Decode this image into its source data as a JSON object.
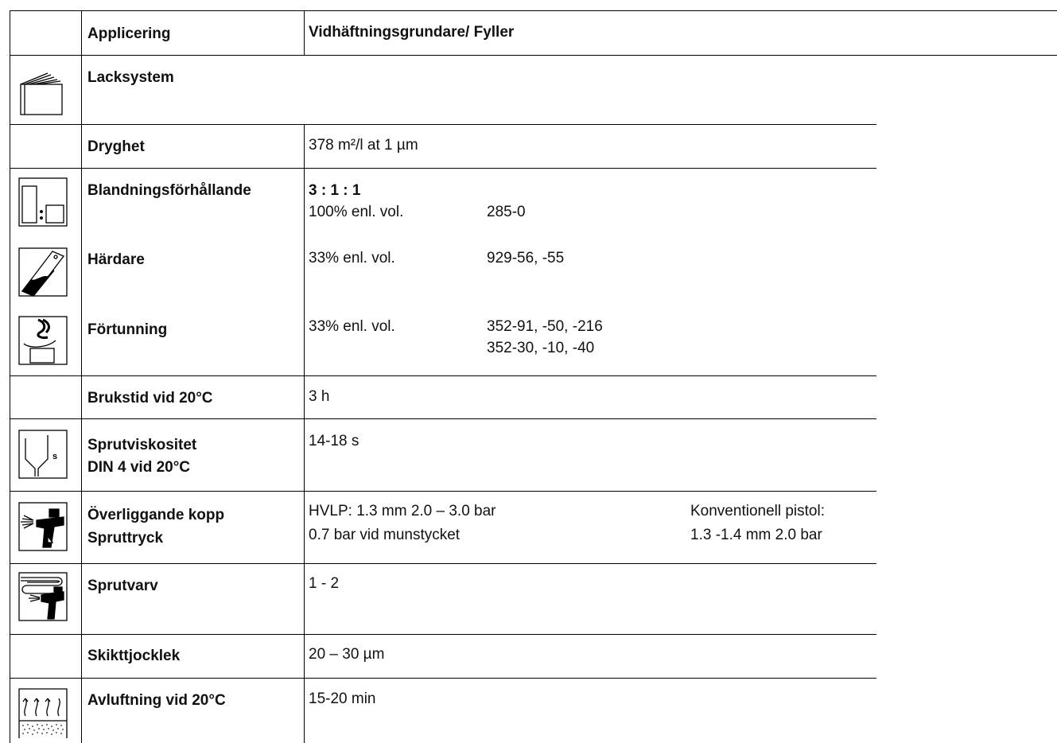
{
  "header": {
    "col_application": "Applicering",
    "col_product": "Vidhäftningsgrundare/ Fyller"
  },
  "rows": {
    "paint_system": {
      "label": "Lacksystem",
      "icon": "paint-layers-icon"
    },
    "coverage": {
      "label": "Dryghet",
      "value": "378 m²/l at 1 µm"
    },
    "mixing_ratio": {
      "label": "Blandningsförhållande",
      "ratio": "3 : 1 : 1",
      "base_amount": "100% enl. vol.",
      "base_code": "285-0",
      "icon": "mixing-containers-icon"
    },
    "hardener": {
      "label": "Härdare",
      "amount": "33% enl. vol.",
      "code": "929-56, -55",
      "icon": "hardener-can-icon"
    },
    "thinner": {
      "label": "Förtunning",
      "amount": "33% enl. vol.",
      "code_line1": "352-91, -50, -216",
      "code_line2": "352-30, -10, -40",
      "icon": "thinner-icon"
    },
    "pot_life": {
      "label": "Brukstid vid 20°C",
      "value": "3 h"
    },
    "viscosity": {
      "label_line1": "Sprutviskositet",
      "label_line2": "DIN 4 vid 20°C",
      "value": "14-18 s",
      "icon": "viscosity-cup-icon"
    },
    "gravity_cup": {
      "label_line1": "Överliggande kopp",
      "label_line2": "Spruttryck",
      "hvlp_line1": "HVLP: 1.3 mm 2.0 – 3.0 bar",
      "hvlp_line2": "0.7 bar vid munstycket",
      "conv_line1": "Konventionell pistol:",
      "conv_line2": "1.3 -1.4 mm 2.0 bar",
      "icon": "spray-gun-icon"
    },
    "coats": {
      "label": "Sprutvarv",
      "value": "1 - 2",
      "icon": "spray-coats-icon"
    },
    "film_thickness": {
      "label": "Skikttjocklek",
      "value": "20 – 30 µm"
    },
    "flash_off": {
      "label": "Avluftning vid 20°C",
      "value": "15-20 min",
      "icon": "flash-off-icon"
    }
  }
}
